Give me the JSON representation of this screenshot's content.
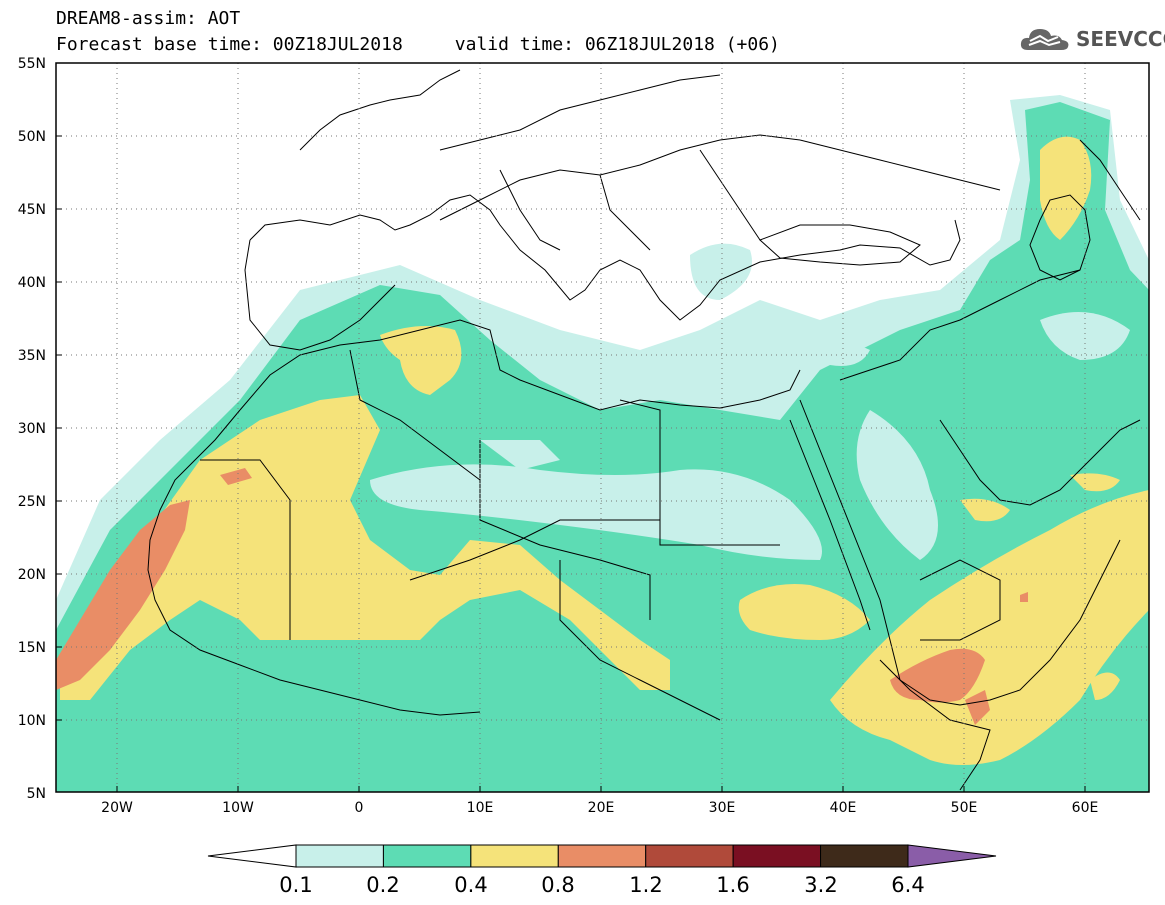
{
  "header": {
    "title_line1": "DREAM8-assim: AOT",
    "base_time": "Forecast base time: 00Z18JUL2018",
    "valid_time": "valid time: 06Z18JUL2018 (+06)",
    "logo_text": "SEEVCCC",
    "logo_icon": "cloud-icon"
  },
  "map": {
    "lon_range": [
      -25,
      65
    ],
    "lat_range": [
      5,
      55
    ],
    "lon_ticks": [
      "20W",
      "10W",
      "0",
      "10E",
      "20E",
      "30E",
      "40E",
      "50E",
      "60E"
    ],
    "lat_ticks": [
      "55N",
      "50N",
      "45N",
      "40N",
      "35N",
      "30N",
      "25N",
      "20N",
      "15N",
      "10N",
      "5N"
    ],
    "grid": "dotted"
  },
  "colorbar": {
    "labels": [
      "0.1",
      "0.2",
      "0.4",
      "0.8",
      "1.2",
      "1.6",
      "3.2",
      "6.4"
    ],
    "colors": [
      "#c8f0ea",
      "#5ddcb4",
      "#f5e37a",
      "#e98d66",
      "#b04a3a",
      "#7a0f22",
      "#3e2a1a",
      "#8a5da8"
    ]
  }
}
